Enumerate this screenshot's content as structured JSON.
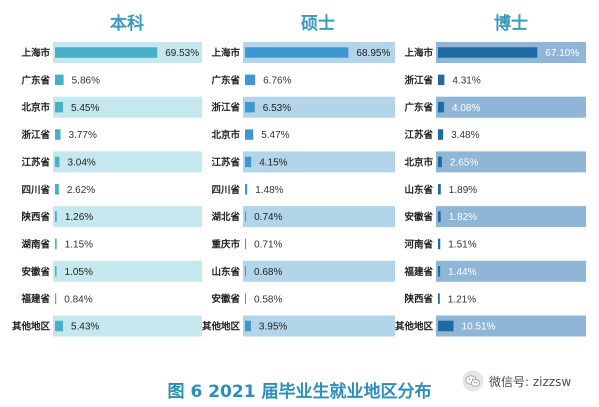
{
  "chart_data": [
    {
      "type": "bar",
      "orientation": "horizontal",
      "title": "本科",
      "categories": [
        "上海市",
        "广东省",
        "北京市",
        "浙江省",
        "江苏省",
        "四川省",
        "陕西省",
        "湖南省",
        "安徽省",
        "福建省",
        "其他地区"
      ],
      "values": [
        69.53,
        5.86,
        5.45,
        3.77,
        3.04,
        2.62,
        1.26,
        1.15,
        1.05,
        0.84,
        5.43
      ],
      "value_labels": [
        "69.53%",
        "5.86%",
        "5.45%",
        "3.77%",
        "3.04%",
        "2.62%",
        "1.26%",
        "1.15%",
        "1.05%",
        "0.84%",
        "5.43%"
      ],
      "xlim": [
        0,
        100
      ],
      "grid": false
    },
    {
      "type": "bar",
      "orientation": "horizontal",
      "title": "硕士",
      "categories": [
        "上海市",
        "广东省",
        "浙江省",
        "北京市",
        "江苏省",
        "四川省",
        "湖北省",
        "重庆市",
        "山东省",
        "安徽省",
        "其他地区"
      ],
      "values": [
        68.95,
        6.76,
        6.53,
        5.47,
        4.15,
        1.48,
        0.74,
        0.71,
        0.68,
        0.58,
        3.95
      ],
      "value_labels": [
        "68.95%",
        "6.76%",
        "6.53%",
        "5.47%",
        "4.15%",
        "1.48%",
        "0.74%",
        "0.71%",
        "0.68%",
        "0.58%",
        "3.95%"
      ],
      "xlim": [
        0,
        100
      ],
      "grid": false
    },
    {
      "type": "bar",
      "orientation": "horizontal",
      "title": "博士",
      "categories": [
        "上海市",
        "浙江省",
        "广东省",
        "江苏省",
        "北京市",
        "山东省",
        "安徽省",
        "河南省",
        "福建省",
        "陕西省",
        "其他地区"
      ],
      "values": [
        67.1,
        4.31,
        4.08,
        3.48,
        2.65,
        1.89,
        1.82,
        1.51,
        1.44,
        1.21,
        10.51
      ],
      "value_labels": [
        "67.10%",
        "4.31%",
        "4.08%",
        "3.48%",
        "2.65%",
        "1.89%",
        "1.82%",
        "1.51%",
        "1.44%",
        "1.21%",
        "10.51%"
      ],
      "xlim": [
        0,
        100
      ],
      "grid": false
    }
  ],
  "caption": "图 6  2021 届毕业生就业地区分布",
  "watermark": {
    "text": "微信号: zizzsw",
    "icon": "wechat-icon"
  },
  "colors": {
    "title": "#3a9bbd",
    "caption": "#2b8fb8",
    "panels": [
      {
        "bar": "#45b0c6",
        "band": "#c5e8ef",
        "text_on_band": "#222222",
        "text_on_white": "#333333"
      },
      {
        "bar": "#3e98cf",
        "band": "#b2d5ea",
        "text_on_band": "#222222",
        "text_on_white": "#333333"
      },
      {
        "bar": "#1e6aa3",
        "band": "#8fb6d6",
        "text_on_band": "#ffffff",
        "text_on_white": "#333333"
      }
    ]
  }
}
